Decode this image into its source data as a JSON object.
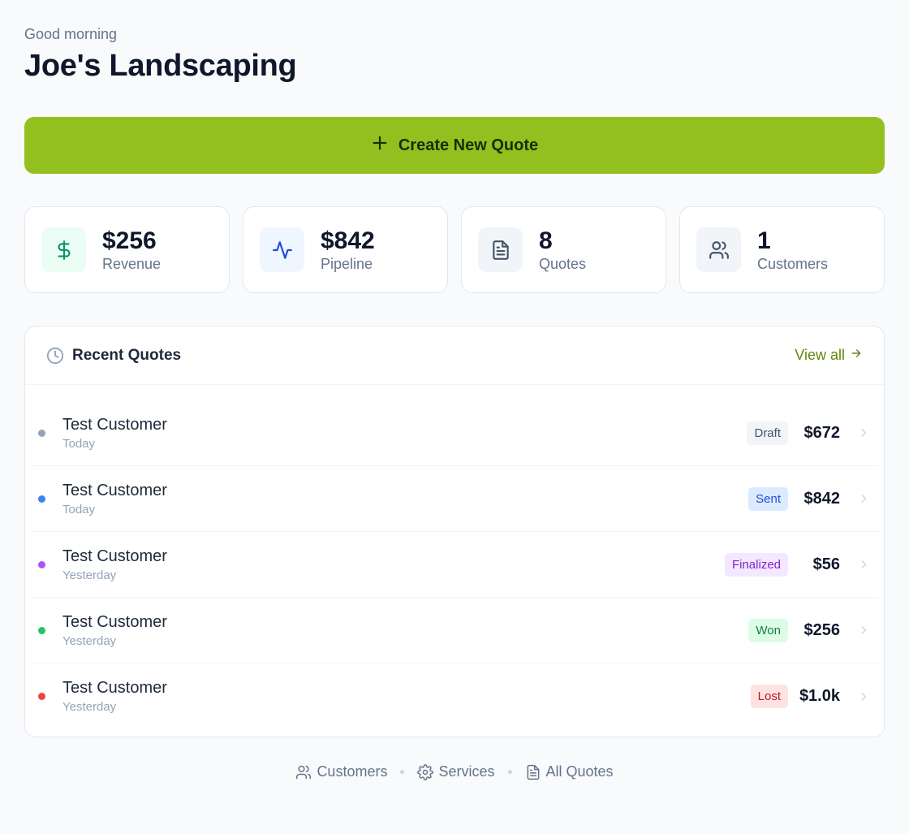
{
  "header": {
    "greeting": "Good morning",
    "business_name": "Joe's Landscaping"
  },
  "cta": {
    "label": "Create New Quote",
    "icon": "plus-icon",
    "color": "#93c01f"
  },
  "stats": [
    {
      "value": "$256",
      "label": "Revenue",
      "icon": "dollar-icon",
      "icon_color": "#059669",
      "icon_bg": "#ecfdf5"
    },
    {
      "value": "$842",
      "label": "Pipeline",
      "icon": "activity-icon",
      "icon_color": "#1d4ed8",
      "icon_bg": "#eff6ff"
    },
    {
      "value": "8",
      "label": "Quotes",
      "icon": "file-text-icon",
      "icon_color": "#475569",
      "icon_bg": "#f1f5f9"
    },
    {
      "value": "1",
      "label": "Customers",
      "icon": "users-icon",
      "icon_color": "#475569",
      "icon_bg": "#f1f5f9"
    }
  ],
  "recent": {
    "title": "Recent Quotes",
    "view_all": "View all",
    "items": [
      {
        "name": "Test Customer",
        "date": "Today",
        "status": "Draft",
        "amount": "$672",
        "dot_color": "#94a3b8",
        "badge_bg": "#f1f5f9",
        "badge_color": "#475569"
      },
      {
        "name": "Test Customer",
        "date": "Today",
        "status": "Sent",
        "amount": "$842",
        "dot_color": "#3b82f6",
        "badge_bg": "#dbeafe",
        "badge_color": "#1d4ed8"
      },
      {
        "name": "Test Customer",
        "date": "Yesterday",
        "status": "Finalized",
        "amount": "$56",
        "dot_color": "#a855f7",
        "badge_bg": "#f3e8ff",
        "badge_color": "#7e22ce"
      },
      {
        "name": "Test Customer",
        "date": "Yesterday",
        "status": "Won",
        "amount": "$256",
        "dot_color": "#22c55e",
        "badge_bg": "#dcfce7",
        "badge_color": "#15803d"
      },
      {
        "name": "Test Customer",
        "date": "Yesterday",
        "status": "Lost",
        "amount": "$1.0k",
        "dot_color": "#ef4444",
        "badge_bg": "#fee2e2",
        "badge_color": "#b91c1c"
      }
    ]
  },
  "footer_nav": [
    {
      "label": "Customers",
      "icon": "users-icon"
    },
    {
      "label": "Services",
      "icon": "gear-icon"
    },
    {
      "label": "All Quotes",
      "icon": "file-text-icon"
    }
  ]
}
